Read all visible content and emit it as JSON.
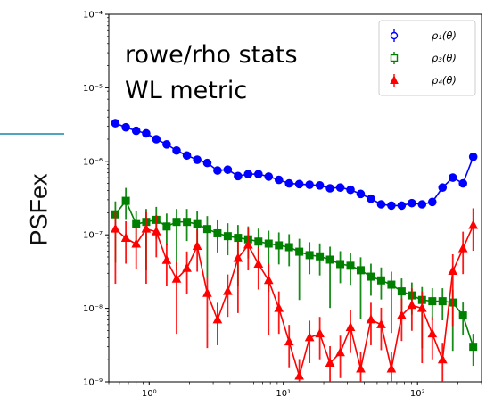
{
  "side_label": "PSFex",
  "chart_data": {
    "type": "scatter",
    "title": "",
    "xlabel": "",
    "ylabel": "",
    "xscale": "log",
    "yscale": "log",
    "xlim": [
      0.5,
      300
    ],
    "ylim": [
      1e-09,
      0.0001
    ],
    "grid": false,
    "annotation_lines": [
      "rowe/rho stats",
      "WL metric"
    ],
    "legend": {
      "placement": "top-right",
      "entries": [
        "ρ₁(θ)",
        "ρ₃(θ)",
        "ρ₄(θ)"
      ]
    },
    "x_tick_labels": [
      "10⁰",
      "10¹",
      "10²"
    ],
    "y_tick_labels": [
      "10⁻⁹",
      "10⁻⁸",
      "10⁻⁷",
      "10⁻⁶",
      "10⁻⁵",
      "10⁻⁴"
    ],
    "series": [
      {
        "name": "ρ₁(θ)",
        "color": "#0000ff",
        "marker": "circle",
        "x": [
          0.56,
          0.67,
          0.8,
          0.95,
          1.13,
          1.35,
          1.6,
          1.91,
          2.28,
          2.71,
          3.23,
          3.85,
          4.59,
          5.47,
          6.52,
          7.77,
          9.26,
          11.04,
          13.15,
          15.68,
          18.69,
          22.27,
          26.55,
          31.64,
          37.71,
          44.95,
          53.58,
          63.86,
          76.12,
          90.72,
          108.1,
          128.9,
          153.6,
          183.1,
          218.2,
          260.1
        ],
        "y": [
          3.3e-06,
          2.9e-06,
          2.6e-06,
          2.4e-06,
          2e-06,
          1.7e-06,
          1.4e-06,
          1.2e-06,
          1.05e-06,
          9.5e-07,
          7.5e-07,
          7.7e-07,
          6.3e-07,
          6.7e-07,
          6.7e-07,
          6.2e-07,
          5.6e-07,
          5e-07,
          4.9e-07,
          4.8e-07,
          4.7e-07,
          4.3e-07,
          4.4e-07,
          4.1e-07,
          3.6e-07,
          3.1e-07,
          2.6e-07,
          2.5e-07,
          2.5e-07,
          2.7e-07,
          2.6e-07,
          2.8e-07,
          4.4e-07,
          6e-07,
          5e-07,
          1.15e-06
        ]
      },
      {
        "name": "ρ₃(θ)",
        "color": "#008000",
        "marker": "square",
        "x": [
          0.56,
          0.67,
          0.8,
          0.95,
          1.13,
          1.35,
          1.6,
          1.91,
          2.28,
          2.71,
          3.23,
          3.85,
          4.59,
          5.47,
          6.52,
          7.77,
          9.26,
          11.04,
          13.15,
          15.68,
          18.69,
          22.27,
          26.55,
          31.64,
          37.71,
          44.95,
          53.58,
          63.86,
          76.12,
          90.72,
          108.1,
          128.9,
          153.6,
          183.1,
          218.2,
          260.1
        ],
        "y": [
          1.9e-07,
          2.9e-07,
          1.4e-07,
          1.5e-07,
          1.6e-07,
          1.3e-07,
          1.5e-07,
          1.5e-07,
          1.4e-07,
          1.2e-07,
          1.05e-07,
          9.6e-08,
          9.1e-08,
          8.7e-08,
          8.1e-08,
          7.6e-08,
          7.2e-08,
          6.8e-08,
          5.9e-08,
          5.3e-08,
          5.1e-08,
          4.6e-08,
          4e-08,
          3.8e-08,
          3.3e-08,
          2.7e-08,
          2.4e-08,
          2.1e-08,
          1.7e-08,
          1.5e-08,
          1.3e-08,
          1.25e-08,
          1.25e-08,
          1.2e-08,
          8e-09,
          3e-09
        ]
      },
      {
        "name": "ρ₄(θ)",
        "color": "#ff0000",
        "marker": "triangle",
        "x": [
          0.56,
          0.67,
          0.8,
          0.95,
          1.13,
          1.35,
          1.6,
          1.91,
          2.28,
          2.71,
          3.23,
          3.85,
          4.59,
          5.47,
          6.52,
          7.77,
          9.26,
          11.04,
          13.15,
          15.68,
          18.69,
          22.27,
          26.55,
          31.64,
          37.71,
          44.95,
          53.58,
          63.86,
          76.12,
          90.72,
          108.1,
          128.9,
          153.6,
          183.1,
          218.2,
          260.1
        ],
        "y": [
          1.2e-07,
          9e-08,
          7.5e-08,
          1.2e-07,
          1.1e-07,
          4.5e-08,
          2.5e-08,
          3.5e-08,
          7e-08,
          1.6e-08,
          7e-09,
          1.7e-08,
          4.8e-08,
          7.3e-08,
          4e-08,
          2.4e-08,
          1e-08,
          3.5e-09,
          1.2e-09,
          4e-09,
          4.5e-09,
          1.8e-09,
          2.5e-09,
          5.5e-09,
          1.5e-09,
          7e-09,
          6e-09,
          1.5e-09,
          8e-09,
          1.1e-08,
          1e-08,
          4.5e-09,
          2e-09,
          3.2e-08,
          6.5e-08,
          1.35e-07
        ]
      }
    ]
  }
}
